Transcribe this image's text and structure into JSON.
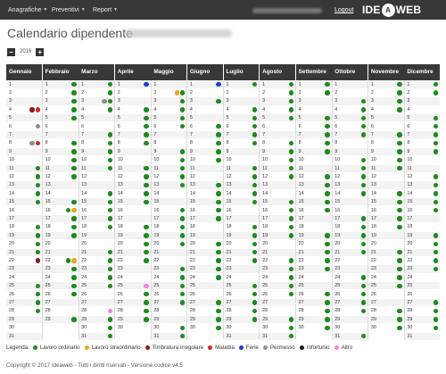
{
  "nav": {
    "items": [
      {
        "label": "Anagrafiche"
      },
      {
        "label": "Preventivi"
      },
      {
        "label": "Report"
      }
    ],
    "logout": "Logout",
    "logo_left": "IDE",
    "logo_badge": "A",
    "logo_right": "WEB"
  },
  "page": {
    "title": "Calendario dipendente"
  },
  "year": {
    "value": "2016",
    "prev": "−",
    "next": "+"
  },
  "colors": {
    "lavoro_ordinario": "#1e8a1e",
    "lavoro_straordinario": "#f0a31c",
    "timbratura_irregolare": "#8b1c1c",
    "malattia": "#d42828",
    "ferie": "#1f3ec9",
    "permesso": "#8e8e8e",
    "infortunio": "#111111",
    "altro": "#ee86d8",
    "header_bg": "#383838"
  },
  "calendar": {
    "months": [
      {
        "label": "Gennaio",
        "days": 31,
        "dots": {
          "4": [
            "timbratura_irregolare",
            "malattia"
          ],
          "6": [
            "permesso"
          ],
          "8": [
            "permesso",
            "malattia"
          ],
          "11": [
            "lavoro_ordinario"
          ],
          "12": [
            "lavoro_ordinario"
          ],
          "13": [
            "lavoro_ordinario"
          ],
          "14": [
            "lavoro_ordinario"
          ],
          "15": [
            "lavoro_ordinario"
          ],
          "18": [
            "lavoro_ordinario"
          ],
          "19": [
            "lavoro_ordinario"
          ],
          "20": [
            "lavoro_ordinario"
          ],
          "21": [
            "lavoro_ordinario"
          ],
          "22": [
            "timbratura_irregolare"
          ],
          "25": [
            "lavoro_ordinario"
          ],
          "26": [
            "lavoro_ordinario"
          ],
          "27": [
            "lavoro_ordinario"
          ],
          "28": [
            "lavoro_ordinario"
          ]
        }
      },
      {
        "label": "Febbraio",
        "days": 29,
        "dots": {
          "1": [
            "lavoro_ordinario"
          ],
          "2": [
            "lavoro_ordinario"
          ],
          "3": [
            "lavoro_ordinario"
          ],
          "4": [
            "lavoro_ordinario"
          ],
          "5": [
            "lavoro_ordinario"
          ],
          "8": [
            "lavoro_ordinario"
          ],
          "9": [
            "lavoro_ordinario"
          ],
          "10": [
            "lavoro_ordinario"
          ],
          "11": [
            "lavoro_ordinario"
          ],
          "12": [
            "lavoro_ordinario"
          ],
          "15": [
            "lavoro_ordinario"
          ],
          "16": [
            "lavoro_ordinario",
            "lavoro_straordinario"
          ],
          "17": [
            "lavoro_ordinario"
          ],
          "18": [
            "lavoro_ordinario"
          ],
          "19": [
            "lavoro_ordinario"
          ],
          "22": [
            "lavoro_ordinario",
            "lavoro_straordinario"
          ],
          "23": [
            "lavoro_ordinario"
          ],
          "24": [
            "lavoro_ordinario"
          ],
          "25": [
            "lavoro_ordinario"
          ],
          "26": [
            "lavoro_ordinario"
          ],
          "29": [
            "lavoro_ordinario"
          ]
        }
      },
      {
        "label": "Marzo",
        "days": 31,
        "dots": {
          "1": [
            "lavoro_ordinario"
          ],
          "2": [
            "lavoro_ordinario"
          ],
          "3": [
            "permesso",
            "lavoro_ordinario"
          ],
          "4": [
            "lavoro_ordinario"
          ],
          "7": [
            "lavoro_ordinario"
          ],
          "8": [
            "lavoro_ordinario"
          ],
          "9": [
            "lavoro_ordinario"
          ],
          "10": [
            "lavoro_ordinario"
          ],
          "11": [
            "lavoro_ordinario"
          ],
          "14": [
            "lavoro_ordinario"
          ],
          "15": [
            "lavoro_ordinario"
          ],
          "16": [
            "lavoro_ordinario"
          ],
          "17": [
            "lavoro_ordinario"
          ],
          "18": [
            "lavoro_ordinario"
          ],
          "21": [
            "lavoro_ordinario"
          ],
          "22": [
            "lavoro_ordinario"
          ],
          "23": [
            "lavoro_ordinario"
          ],
          "24": [
            "lavoro_ordinario"
          ],
          "25": [
            "lavoro_ordinario"
          ],
          "28": [
            "altro"
          ],
          "29": [
            "lavoro_ordinario"
          ],
          "30": [
            "lavoro_ordinario"
          ],
          "31": [
            "lavoro_ordinario"
          ]
        }
      },
      {
        "label": "Aprile",
        "days": 30,
        "dots": {
          "1": [
            "ferie"
          ],
          "4": [
            "lavoro_ordinario"
          ],
          "5": [
            "lavoro_ordinario"
          ],
          "6": [
            "lavoro_ordinario"
          ],
          "7": [
            "lavoro_ordinario"
          ],
          "8": [
            "lavoro_ordinario"
          ],
          "11": [
            "lavoro_ordinario"
          ],
          "12": [
            "lavoro_ordinario"
          ],
          "13": [
            "lavoro_ordinario"
          ],
          "14": [
            "lavoro_ordinario"
          ],
          "15": [
            "lavoro_ordinario"
          ],
          "18": [
            "lavoro_ordinario"
          ],
          "19": [
            "lavoro_ordinario"
          ],
          "20": [
            "lavoro_ordinario"
          ],
          "21": [
            "lavoro_ordinario"
          ],
          "22": [
            "lavoro_ordinario"
          ],
          "25": [
            "altro"
          ],
          "26": [
            "lavoro_ordinario"
          ],
          "27": [
            "lavoro_ordinario"
          ],
          "28": [
            "lavoro_ordinario"
          ],
          "29": [
            "lavoro_ordinario"
          ]
        }
      },
      {
        "label": "Maggio",
        "days": 31,
        "dots": {
          "2": [
            "lavoro_straordinario",
            "lavoro_ordinario"
          ],
          "3": [
            "lavoro_ordinario"
          ],
          "4": [
            "lavoro_ordinario"
          ],
          "5": [
            "lavoro_ordinario"
          ],
          "6": [
            "lavoro_ordinario"
          ],
          "9": [
            "lavoro_ordinario"
          ],
          "10": [
            "lavoro_ordinario"
          ],
          "11": [
            "lavoro_ordinario"
          ],
          "12": [
            "lavoro_ordinario"
          ],
          "13": [
            "lavoro_ordinario"
          ],
          "16": [
            "lavoro_ordinario"
          ],
          "17": [
            "lavoro_ordinario"
          ],
          "18": [
            "lavoro_ordinario"
          ],
          "19": [
            "lavoro_ordinario"
          ],
          "20": [
            "lavoro_ordinario"
          ],
          "23": [
            "lavoro_ordinario"
          ],
          "24": [
            "lavoro_ordinario"
          ],
          "25": [
            "lavoro_ordinario"
          ],
          "26": [
            "lavoro_ordinario"
          ],
          "27": [
            "lavoro_ordinario"
          ],
          "30": [
            "lavoro_ordinario"
          ],
          "31": [
            "lavoro_ordinario"
          ]
        }
      },
      {
        "label": "Giugno",
        "days": 30,
        "dots": {
          "1": [
            "ferie"
          ],
          "3": [
            "lavoro_ordinario"
          ],
          "6": [
            "lavoro_ordinario"
          ],
          "7": [
            "lavoro_ordinario"
          ],
          "8": [
            "lavoro_ordinario"
          ],
          "9": [
            "lavoro_ordinario"
          ],
          "10": [
            "lavoro_ordinario"
          ],
          "13": [
            "lavoro_ordinario"
          ],
          "14": [
            "lavoro_ordinario"
          ],
          "15": [
            "lavoro_ordinario"
          ],
          "16": [
            "lavoro_ordinario"
          ],
          "17": [
            "lavoro_ordinario"
          ],
          "20": [
            "lavoro_ordinario"
          ],
          "21": [
            "lavoro_ordinario"
          ],
          "22": [
            "lavoro_ordinario"
          ],
          "23": [
            "lavoro_ordinario"
          ],
          "24": [
            "lavoro_ordinario"
          ],
          "27": [
            "lavoro_ordinario"
          ],
          "28": [
            "lavoro_ordinario"
          ],
          "29": [
            "lavoro_ordinario"
          ],
          "30": [
            "lavoro_ordinario"
          ]
        }
      },
      {
        "label": "Luglio",
        "days": 31,
        "dots": {
          "1": [
            "lavoro_ordinario"
          ],
          "4": [
            "lavoro_ordinario"
          ],
          "5": [
            "lavoro_ordinario"
          ],
          "6": [
            "lavoro_ordinario"
          ],
          "7": [
            "lavoro_ordinario"
          ],
          "8": [
            "lavoro_ordinario"
          ],
          "11": [
            "lavoro_ordinario"
          ],
          "12": [
            "lavoro_ordinario"
          ],
          "13": [
            "lavoro_ordinario"
          ],
          "14": [
            "lavoro_ordinario"
          ],
          "15": [
            "lavoro_ordinario"
          ],
          "18": [
            "lavoro_ordinario"
          ],
          "19": [
            "lavoro_ordinario"
          ],
          "20": [
            "lavoro_ordinario"
          ],
          "21": [
            "lavoro_ordinario"
          ],
          "22": [
            "lavoro_ordinario"
          ],
          "25": [
            "lavoro_ordinario"
          ],
          "26": [
            "lavoro_ordinario"
          ],
          "27": [
            "lavoro_ordinario"
          ],
          "28": [
            "lavoro_ordinario"
          ],
          "29": [
            "lavoro_ordinario"
          ]
        }
      },
      {
        "label": "Agosto",
        "days": 31,
        "dots": {
          "1": [
            "lavoro_ordinario"
          ],
          "2": [
            "lavoro_ordinario"
          ],
          "3": [
            "lavoro_ordinario"
          ],
          "4": [
            "lavoro_ordinario"
          ],
          "5": [
            "lavoro_ordinario"
          ],
          "8": [
            "lavoro_ordinario"
          ],
          "9": [
            "lavoro_ordinario"
          ],
          "10": [
            "lavoro_ordinario"
          ],
          "11": [
            "lavoro_ordinario"
          ],
          "12": [
            "lavoro_ordinario"
          ],
          "15": [
            "lavoro_ordinario"
          ],
          "16": [
            "lavoro_ordinario"
          ],
          "17": [
            "lavoro_ordinario"
          ],
          "18": [
            "lavoro_ordinario"
          ],
          "19": [
            "lavoro_ordinario"
          ],
          "22": [
            "lavoro_ordinario"
          ],
          "23": [
            "lavoro_ordinario"
          ],
          "24": [
            "lavoro_ordinario"
          ],
          "25": [
            "lavoro_ordinario"
          ],
          "26": [
            "lavoro_ordinario"
          ],
          "29": [
            "lavoro_ordinario"
          ],
          "30": [
            "lavoro_ordinario"
          ],
          "31": [
            "lavoro_ordinario"
          ]
        }
      },
      {
        "label": "Settembre",
        "days": 30,
        "dots": {
          "1": [
            "lavoro_ordinario"
          ],
          "2": [
            "lavoro_ordinario"
          ],
          "5": [
            "lavoro_ordinario"
          ],
          "6": [
            "lavoro_ordinario"
          ],
          "7": [
            "lavoro_ordinario"
          ],
          "8": [
            "lavoro_ordinario"
          ],
          "9": [
            "lavoro_ordinario"
          ],
          "12": [
            "lavoro_ordinario"
          ],
          "13": [
            "lavoro_ordinario"
          ],
          "14": [
            "lavoro_ordinario"
          ],
          "15": [
            "lavoro_ordinario"
          ],
          "16": [
            "lavoro_ordinario"
          ],
          "19": [
            "lavoro_ordinario"
          ],
          "20": [
            "lavoro_ordinario"
          ],
          "21": [
            "lavoro_ordinario"
          ],
          "22": [
            "lavoro_ordinario"
          ],
          "23": [
            "lavoro_ordinario"
          ],
          "26": [
            "lavoro_ordinario"
          ],
          "27": [
            "lavoro_ordinario"
          ],
          "28": [
            "lavoro_ordinario"
          ],
          "29": [
            "lavoro_ordinario"
          ],
          "30": [
            "lavoro_ordinario"
          ]
        }
      },
      {
        "label": "Ottobre",
        "days": 31,
        "dots": {
          "3": [
            "lavoro_ordinario"
          ],
          "4": [
            "lavoro_ordinario"
          ],
          "5": [
            "lavoro_ordinario"
          ],
          "6": [
            "lavoro_ordinario"
          ],
          "7": [
            "lavoro_ordinario"
          ],
          "10": [
            "lavoro_ordinario"
          ],
          "11": [
            "lavoro_ordinario"
          ],
          "12": [
            "lavoro_ordinario"
          ],
          "13": [
            "lavoro_ordinario"
          ],
          "14": [
            "lavoro_ordinario"
          ],
          "17": [
            "lavoro_ordinario"
          ],
          "18": [
            "lavoro_ordinario"
          ],
          "19": [
            "lavoro_ordinario"
          ],
          "20": [
            "lavoro_ordinario"
          ],
          "21": [
            "lavoro_ordinario"
          ],
          "24": [
            "lavoro_ordinario"
          ],
          "25": [
            "lavoro_ordinario"
          ],
          "26": [
            "lavoro_ordinario"
          ],
          "27": [
            "lavoro_ordinario"
          ],
          "28": [
            "lavoro_ordinario"
          ],
          "31": [
            "lavoro_ordinario"
          ]
        }
      },
      {
        "label": "Novembre",
        "days": 30,
        "dots": {
          "1": [
            "lavoro_ordinario"
          ],
          "2": [
            "lavoro_ordinario"
          ],
          "3": [
            "lavoro_ordinario"
          ],
          "4": [
            "lavoro_ordinario"
          ],
          "7": [
            "lavoro_ordinario"
          ],
          "8": [
            "lavoro_ordinario"
          ],
          "9": [
            "lavoro_ordinario"
          ],
          "10": [
            "lavoro_ordinario"
          ],
          "11": [
            "lavoro_ordinario"
          ],
          "14": [
            "lavoro_ordinario"
          ],
          "15": [
            "lavoro_ordinario"
          ],
          "16": [
            "lavoro_ordinario"
          ],
          "17": [
            "lavoro_ordinario"
          ],
          "18": [
            "lavoro_ordinario"
          ],
          "21": [
            "lavoro_ordinario"
          ],
          "22": [
            "lavoro_ordinario"
          ],
          "23": [
            "lavoro_ordinario"
          ],
          "24": [
            "lavoro_ordinario"
          ],
          "25": [
            "lavoro_ordinario"
          ],
          "28": [
            "lavoro_ordinario"
          ],
          "29": [
            "lavoro_ordinario"
          ],
          "30": [
            "lavoro_ordinario"
          ]
        }
      },
      {
        "label": "Dicembre",
        "days": 31,
        "dots": {
          "1": [
            "lavoro_ordinario"
          ],
          "2": [
            "lavoro_ordinario"
          ],
          "5": [
            "lavoro_ordinario"
          ],
          "6": [
            "lavoro_ordinario"
          ],
          "7": [
            "lavoro_ordinario"
          ],
          "8": [
            "lavoro_ordinario"
          ],
          "9": [
            "lavoro_ordinario"
          ],
          "12": [
            "lavoro_ordinario"
          ],
          "13": [
            "lavoro_ordinario"
          ],
          "14": [
            "lavoro_ordinario"
          ],
          "15": [
            "lavoro_ordinario"
          ],
          "16": [
            "lavoro_ordinario"
          ],
          "19": [
            "lavoro_ordinario"
          ],
          "20": [
            "lavoro_ordinario"
          ],
          "21": [
            "lavoro_ordinario"
          ],
          "22": [
            "lavoro_ordinario"
          ],
          "23": [
            "lavoro_ordinario"
          ],
          "27": [
            "lavoro_ordinario"
          ],
          "28": [
            "lavoro_ordinario"
          ],
          "29": [
            "lavoro_ordinario"
          ],
          "30": [
            "lavoro_ordinario"
          ]
        }
      }
    ]
  },
  "legend": {
    "title": "Legenda:",
    "items": [
      {
        "key": "lavoro_ordinario",
        "label": "Lavoro ordinario"
      },
      {
        "key": "lavoro_straordinario",
        "label": "Lavoro straordinario"
      },
      {
        "key": "timbratura_irregolare",
        "label": "Timbratura irregolare"
      },
      {
        "key": "malattia",
        "label": "Malattia"
      },
      {
        "key": "ferie",
        "label": "Ferie"
      },
      {
        "key": "permesso",
        "label": "Permesso"
      },
      {
        "key": "infortunio",
        "label": "Infortunio"
      },
      {
        "key": "altro",
        "label": "Altro"
      }
    ]
  },
  "footer": {
    "text": "Copyright © 2017 Ideaweb - Tutti i diritti riservati - Versione codice v4.5"
  }
}
